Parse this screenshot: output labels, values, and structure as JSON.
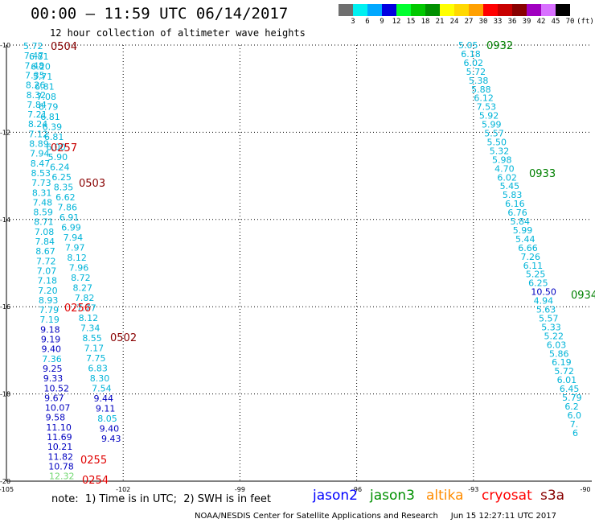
{
  "header": {
    "title": "00:00 – 11:59 UTC 06/14/2017",
    "subtitle": "12 hour collection of altimeter wave heights"
  },
  "legend": {
    "unit": "(ft)",
    "entries": [
      {
        "label": "3",
        "color": "#6f6f6f"
      },
      {
        "label": "6",
        "color": "#00f0f0"
      },
      {
        "label": "9",
        "color": "#00a8ff"
      },
      {
        "label": "12",
        "color": "#0000e0"
      },
      {
        "label": "15",
        "color": "#00ff30"
      },
      {
        "label": "18",
        "color": "#00c800"
      },
      {
        "label": "21",
        "color": "#009000"
      },
      {
        "label": "24",
        "color": "#ffff00"
      },
      {
        "label": "27",
        "color": "#ffd800"
      },
      {
        "label": "30",
        "color": "#ffa000"
      },
      {
        "label": "33",
        "color": "#ff0000"
      },
      {
        "label": "36",
        "color": "#c80000"
      },
      {
        "label": "39",
        "color": "#880000"
      },
      {
        "label": "42",
        "color": "#a000c0"
      },
      {
        "label": "45",
        "color": "#d870ff"
      },
      {
        "label": "70",
        "color": "#000000"
      }
    ]
  },
  "axes": {
    "lon_labels": [
      "-105",
      "-102",
      "-99",
      "-96",
      "-93",
      "-90"
    ],
    "lat_labels": [
      "-10",
      "-12",
      "-14",
      "-16",
      "-18",
      "-20"
    ]
  },
  "times": [
    {
      "label": "0504",
      "color": "#880000"
    },
    {
      "label": "0257",
      "color": "#c80000"
    },
    {
      "label": "0503",
      "color": "#880000"
    },
    {
      "label": "0256",
      "color": "#e00000"
    },
    {
      "label": "0502",
      "color": "#880000"
    },
    {
      "label": "0255",
      "color": "#e00000"
    },
    {
      "label": "0254",
      "color": "#e00000"
    },
    {
      "label": "0932",
      "color": "#008000"
    },
    {
      "label": "0933",
      "color": "#008000"
    },
    {
      "label": "0934",
      "color": "#008000"
    }
  ],
  "tracks": {
    "colors": {
      "cyan": "#00b4d8",
      "blue": "#0000c0",
      "green": "#70d870"
    },
    "t1": [
      [
        "5.72",
        "c"
      ],
      [
        "7.47",
        "c"
      ],
      [
        "7.48",
        "c"
      ],
      [
        "7.35",
        "c"
      ],
      [
        "8.26",
        "c"
      ],
      [
        "8.32",
        "c"
      ],
      [
        "7.84",
        "c"
      ],
      [
        "7.21",
        "c"
      ],
      [
        "8.24",
        "c"
      ],
      [
        "7.12",
        "c"
      ],
      [
        "8.89",
        "c"
      ],
      [
        "7.94",
        "c"
      ],
      [
        "8.47",
        "c"
      ],
      [
        "8.53",
        "c"
      ],
      [
        "7.73",
        "c"
      ],
      [
        "8.31",
        "c"
      ],
      [
        "7.48",
        "c"
      ],
      [
        "8.59",
        "c"
      ],
      [
        "8.71",
        "c"
      ],
      [
        "7.08",
        "c"
      ],
      [
        "7.84",
        "c"
      ],
      [
        "8.67",
        "c"
      ],
      [
        "7.72",
        "c"
      ],
      [
        "7.07",
        "c"
      ],
      [
        "7.18",
        "c"
      ],
      [
        "7.20",
        "c"
      ],
      [
        "8.93",
        "c"
      ],
      [
        "7.79",
        "c"
      ],
      [
        "7.19",
        "c"
      ],
      [
        "9.18",
        "b"
      ],
      [
        "9.19",
        "b"
      ],
      [
        "9.40",
        "b"
      ],
      [
        "7.36",
        "c"
      ],
      [
        "9.25",
        "b"
      ],
      [
        "9.33",
        "b"
      ],
      [
        "10.52",
        "b"
      ],
      [
        "9.67",
        "b"
      ],
      [
        "10.07",
        "b"
      ],
      [
        "9.58",
        "b"
      ],
      [
        "11.10",
        "b"
      ],
      [
        "11.69",
        "b"
      ],
      [
        "10.21",
        "b"
      ],
      [
        "11.82",
        "b"
      ],
      [
        "10.78",
        "b"
      ],
      [
        "12.32",
        "g"
      ]
    ],
    "t2": [
      [
        "6.81",
        "c"
      ],
      [
        "6.20",
        "c"
      ],
      [
        "5.71",
        "c"
      ],
      [
        "6.81",
        "c"
      ],
      [
        "7.08",
        "c"
      ],
      [
        "6.79",
        "c"
      ],
      [
        "6.81",
        "c"
      ],
      [
        "6.39",
        "c"
      ],
      [
        "6.81",
        "c"
      ],
      [
        "6.00",
        "c"
      ],
      [
        "5.90",
        "c"
      ],
      [
        "6.24",
        "c"
      ],
      [
        "6.25",
        "c"
      ],
      [
        "8.35",
        "c"
      ],
      [
        "6.62",
        "c"
      ],
      [
        "7.86",
        "c"
      ],
      [
        "6.91",
        "c"
      ],
      [
        "6.99",
        "c"
      ],
      [
        "7.94",
        "c"
      ],
      [
        "7.97",
        "c"
      ],
      [
        "8.12",
        "c"
      ],
      [
        "7.96",
        "c"
      ],
      [
        "8.72",
        "c"
      ],
      [
        "8.27",
        "c"
      ],
      [
        "7.82",
        "c"
      ],
      [
        "7.77",
        "c"
      ],
      [
        "8.12",
        "c"
      ],
      [
        "7.34",
        "c"
      ],
      [
        "8.55",
        "c"
      ],
      [
        "7.17",
        "c"
      ],
      [
        "7.75",
        "c"
      ],
      [
        "6.83",
        "c"
      ],
      [
        "8.30",
        "c"
      ],
      [
        "7.54",
        "c"
      ],
      [
        "9.44",
        "b"
      ],
      [
        "9.11",
        "b"
      ],
      [
        "8.05",
        "c"
      ],
      [
        "9.40",
        "b"
      ],
      [
        "9.43",
        "b"
      ]
    ],
    "t3": [
      [
        "5.05",
        "c"
      ],
      [
        "6.18",
        "c"
      ],
      [
        "6.02",
        "c"
      ],
      [
        "5.72",
        "c"
      ],
      [
        "5.38",
        "c"
      ],
      [
        "5.88",
        "c"
      ],
      [
        "6.12",
        "c"
      ],
      [
        "7.53",
        "c"
      ],
      [
        "5.92",
        "c"
      ],
      [
        "5.99",
        "c"
      ],
      [
        "5.57",
        "c"
      ],
      [
        "5.50",
        "c"
      ],
      [
        "5.32",
        "c"
      ],
      [
        "5.98",
        "c"
      ],
      [
        "4.70",
        "c"
      ],
      [
        "6.02",
        "c"
      ],
      [
        "5.45",
        "c"
      ],
      [
        "5.83",
        "c"
      ],
      [
        "6.16",
        "c"
      ],
      [
        "6.76",
        "c"
      ],
      [
        "5.84",
        "c"
      ],
      [
        "5.99",
        "c"
      ],
      [
        "5.44",
        "c"
      ],
      [
        "6.66",
        "c"
      ],
      [
        "7.26",
        "c"
      ],
      [
        "6.11",
        "c"
      ],
      [
        "5.25",
        "c"
      ],
      [
        "6.25",
        "c"
      ],
      [
        "10.50",
        "b"
      ],
      [
        "4.94",
        "c"
      ],
      [
        "5.63",
        "c"
      ],
      [
        "5.57",
        "c"
      ],
      [
        "5.33",
        "c"
      ],
      [
        "5.22",
        "c"
      ],
      [
        "6.03",
        "c"
      ],
      [
        "5.86",
        "c"
      ],
      [
        "6.19",
        "c"
      ],
      [
        "5.72",
        "c"
      ],
      [
        "6.01",
        "c"
      ],
      [
        "6.45",
        "c"
      ],
      [
        "5.79",
        "c"
      ],
      [
        "6.2",
        "c"
      ],
      [
        "6.0",
        "c"
      ],
      [
        "7.",
        "c"
      ],
      [
        "6",
        "c"
      ]
    ]
  },
  "footer": {
    "note": "note:  1) Time is in UTC;  2) SWH is in feet",
    "satellites": [
      {
        "name": "jason2",
        "color": "#0000ff"
      },
      {
        "name": "jason3",
        "color": "#009000"
      },
      {
        "name": "altika",
        "color": "#ff8c00"
      },
      {
        "name": "cryosat",
        "color": "#ff0000"
      },
      {
        "name": "s3a",
        "color": "#880000"
      }
    ],
    "credit": "NOAA/NESDIS Center for Satellite Applications and Research     Jun 15 12:27:11 UTC 2017"
  }
}
